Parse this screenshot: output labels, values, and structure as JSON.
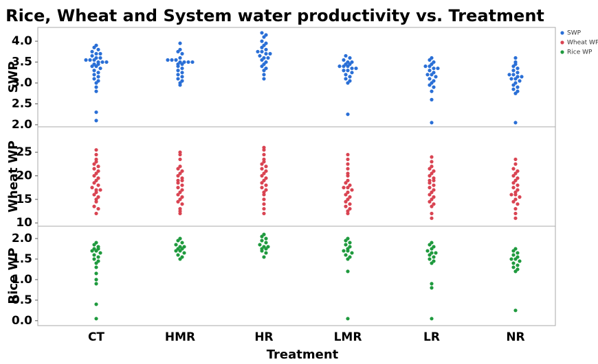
{
  "chart_data": {
    "type": "beeswarm",
    "title": "Rice, Wheat and System water productivity vs. Treatment",
    "x_label": "Treatment",
    "categories": [
      "CT",
      "HMR",
      "HR",
      "LMR",
      "LR",
      "NR"
    ],
    "panels": [
      {
        "y_label": "SWP",
        "ylim": [
          1.95,
          4.33
        ],
        "yticks": [
          {
            "value": 2.0,
            "label": "2.0"
          },
          2.5,
          {
            "value": 3.0,
            "label": "3.0"
          },
          3.5,
          {
            "value": 4.0,
            "label": "4.0"
          }
        ],
        "series": [
          {
            "name": "SWP",
            "color": "#2a6fd6",
            "values": [
              [
                3.9,
                3.85,
                3.8,
                3.75,
                3.7,
                3.7,
                3.65,
                3.6,
                3.6,
                3.55,
                3.55,
                3.55,
                3.5,
                3.5,
                3.5,
                3.45,
                3.45,
                3.4,
                3.4,
                3.35,
                3.3,
                3.25,
                3.2,
                3.15,
                3.1,
                3.05,
                3.0,
                2.9,
                2.8,
                2.3,
                2.1
              ],
              [
                3.95,
                3.8,
                3.75,
                3.7,
                3.6,
                3.55,
                3.55,
                3.55,
                3.5,
                3.5,
                3.5,
                3.5,
                3.45,
                3.45,
                3.4,
                3.35,
                3.3,
                3.25,
                3.2,
                3.15,
                3.1,
                3.05,
                3.0,
                2.95
              ],
              [
                4.2,
                4.15,
                4.1,
                4.0,
                3.95,
                3.9,
                3.85,
                3.8,
                3.75,
                3.75,
                3.7,
                3.7,
                3.65,
                3.6,
                3.6,
                3.55,
                3.5,
                3.45,
                3.4,
                3.35,
                3.3,
                3.2,
                3.1
              ],
              [
                3.65,
                3.6,
                3.55,
                3.5,
                3.5,
                3.45,
                3.45,
                3.4,
                3.4,
                3.4,
                3.35,
                3.35,
                3.3,
                3.3,
                3.25,
                3.2,
                3.15,
                3.1,
                3.05,
                3.0,
                2.25
              ],
              [
                3.6,
                3.55,
                3.5,
                3.45,
                3.4,
                3.4,
                3.35,
                3.35,
                3.3,
                3.25,
                3.2,
                3.2,
                3.15,
                3.1,
                3.05,
                3.0,
                2.95,
                2.9,
                2.8,
                2.6,
                2.05
              ],
              [
                3.6,
                3.5,
                3.45,
                3.4,
                3.35,
                3.3,
                3.25,
                3.2,
                3.2,
                3.15,
                3.15,
                3.1,
                3.1,
                3.05,
                3.0,
                2.95,
                2.9,
                2.85,
                2.8,
                2.75,
                2.05
              ]
            ]
          }
        ]
      },
      {
        "y_label": "Wheat WP",
        "ylim": [
          9.3,
          30.4
        ],
        "yticks": [
          10,
          15,
          20,
          25
        ],
        "series": [
          {
            "name": "Wheat WP",
            "color": "#d94452",
            "values": [
              [
                25.5,
                24.5,
                23.5,
                23,
                22.5,
                22,
                21.5,
                21,
                20.5,
                20,
                19.5,
                19,
                18.5,
                18,
                17.5,
                17,
                17,
                16.5,
                16,
                15.5,
                15,
                14.5,
                13.5,
                13,
                12
              ],
              [
                25,
                24.5,
                23.5,
                22,
                21.5,
                21,
                20.5,
                20,
                19.5,
                19,
                19,
                18.5,
                18,
                17.5,
                17,
                16.5,
                16,
                15.5,
                15,
                14.5,
                14,
                13,
                12.5,
                12
              ],
              [
                26,
                25.5,
                24.5,
                23.5,
                23,
                22.5,
                22,
                21.5,
                21,
                20.5,
                20,
                19.5,
                19,
                18.5,
                18,
                17.5,
                17,
                16.5,
                16,
                15,
                14,
                13,
                12
              ],
              [
                24.5,
                23.5,
                22.5,
                21.5,
                20.5,
                20,
                19,
                18.5,
                18,
                17.5,
                17.5,
                17,
                16.5,
                16,
                15.5,
                15,
                14.5,
                14,
                13.5,
                13,
                12.5,
                12
              ],
              [
                24,
                23,
                22,
                21.5,
                21,
                20.5,
                20,
                19.5,
                19,
                19,
                18.5,
                18,
                17.5,
                17,
                16.5,
                16,
                15.5,
                15,
                14.5,
                14,
                13.5,
                12,
                11
              ],
              [
                23.5,
                22.5,
                21.5,
                21,
                20.5,
                20,
                19.5,
                19,
                18.5,
                18,
                17.5,
                17,
                16.5,
                16,
                16,
                15.5,
                15,
                14.5,
                14,
                13,
                12,
                11
              ]
            ]
          }
        ]
      },
      {
        "y_label": "Rice WP",
        "ylim": [
          -0.12,
          2.3
        ],
        "yticks": [
          {
            "value": 0.0,
            "label": "0.0"
          },
          0.5,
          {
            "value": 1.0,
            "label": "1.0"
          },
          1.5,
          {
            "value": 2.0,
            "label": "2.0"
          }
        ],
        "series": [
          {
            "name": "Rice WP",
            "color": "#1f9a3e",
            "values": [
              [
                1.9,
                1.85,
                1.8,
                1.75,
                1.75,
                1.7,
                1.7,
                1.65,
                1.6,
                1.55,
                1.5,
                1.45,
                1.4,
                1.3,
                1.15,
                1.0,
                0.9,
                0.4,
                0.05
              ],
              [
                2.0,
                1.95,
                1.9,
                1.85,
                1.8,
                1.8,
                1.75,
                1.75,
                1.7,
                1.7,
                1.65,
                1.6,
                1.55,
                1.5
              ],
              [
                2.1,
                2.05,
                2.0,
                1.95,
                1.9,
                1.85,
                1.8,
                1.8,
                1.75,
                1.75,
                1.7,
                1.65,
                1.55
              ],
              [
                2.0,
                1.95,
                1.9,
                1.85,
                1.8,
                1.75,
                1.7,
                1.7,
                1.65,
                1.6,
                1.55,
                1.5,
                1.2,
                0.05
              ],
              [
                1.9,
                1.85,
                1.8,
                1.75,
                1.7,
                1.65,
                1.65,
                1.6,
                1.55,
                1.5,
                1.45,
                1.4,
                0.9,
                0.8,
                0.05
              ],
              [
                1.75,
                1.7,
                1.65,
                1.6,
                1.55,
                1.5,
                1.5,
                1.45,
                1.4,
                1.35,
                1.3,
                1.25,
                1.2,
                0.25
              ]
            ]
          }
        ]
      }
    ]
  }
}
